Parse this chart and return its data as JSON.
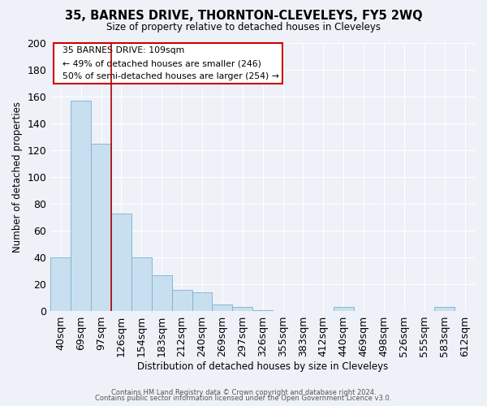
{
  "title": "35, BARNES DRIVE, THORNTON-CLEVELEYS, FY5 2WQ",
  "subtitle": "Size of property relative to detached houses in Cleveleys",
  "xlabel": "Distribution of detached houses by size in Cleveleys",
  "ylabel": "Number of detached properties",
  "bar_labels": [
    "40sqm",
    "69sqm",
    "97sqm",
    "126sqm",
    "154sqm",
    "183sqm",
    "212sqm",
    "240sqm",
    "269sqm",
    "297sqm",
    "326sqm",
    "355sqm",
    "383sqm",
    "412sqm",
    "440sqm",
    "469sqm",
    "498sqm",
    "526sqm",
    "555sqm",
    "583sqm",
    "612sqm"
  ],
  "bar_values": [
    40,
    157,
    125,
    73,
    40,
    27,
    16,
    14,
    5,
    3,
    1,
    0,
    0,
    0,
    3,
    0,
    0,
    0,
    0,
    3,
    0
  ],
  "bar_face_color": "#c8dff0",
  "bar_edge_color": "#7ab0d0",
  "vline_color": "#aa0000",
  "ylim": [
    0,
    200
  ],
  "yticks": [
    0,
    20,
    40,
    60,
    80,
    100,
    120,
    140,
    160,
    180,
    200
  ],
  "annotation_title": "35 BARNES DRIVE: 109sqm",
  "annotation_line1": "← 49% of detached houses are smaller (246)",
  "annotation_line2": "50% of semi-detached houses are larger (254) →",
  "annotation_box_color": "#ffffff",
  "annotation_box_edge": "#cc0000",
  "footer_line1": "Contains HM Land Registry data © Crown copyright and database right 2024.",
  "footer_line2": "Contains public sector information licensed under the Open Government Licence v3.0.",
  "bg_color": "#eef1f8",
  "grid_color": "#ffffff"
}
